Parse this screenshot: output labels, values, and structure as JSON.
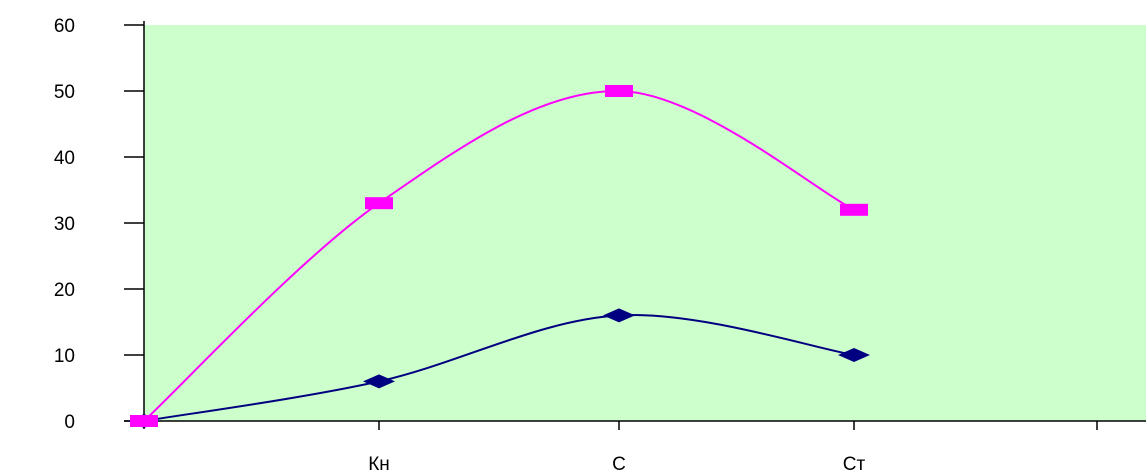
{
  "chart_data": {
    "type": "line",
    "title": "",
    "xlabel": "",
    "ylabel": "",
    "categories": [
      "",
      "Кн",
      "С",
      "Ст",
      ""
    ],
    "x": [
      0,
      1,
      2,
      3
    ],
    "ylim": [
      0,
      60
    ],
    "yticks": [
      0,
      10,
      20,
      30,
      40,
      50,
      60
    ],
    "grid": false,
    "legend": "none",
    "plot_background": "#ccffcc",
    "series": [
      {
        "values": [
          0,
          6,
          16,
          10
        ],
        "color": "#000080",
        "marker": "diamond"
      },
      {
        "values": [
          0,
          33,
          50,
          32
        ],
        "color": "#ff00ff",
        "marker": "rectangle"
      }
    ]
  }
}
